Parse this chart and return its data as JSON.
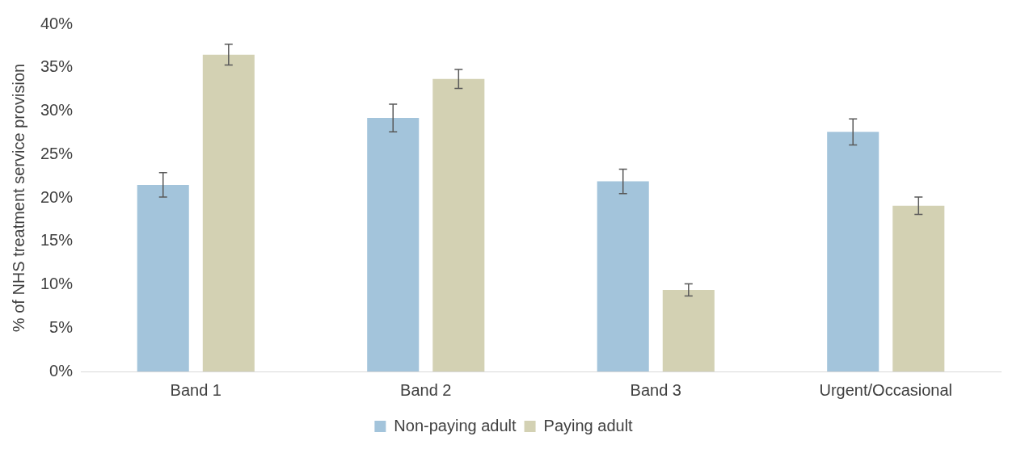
{
  "chart_data": {
    "type": "bar",
    "ylabel": "% of NHS treatment service provision",
    "categories": [
      "Band 1",
      "Band 2",
      "Band 3",
      "Urgent/Occasional"
    ],
    "series": [
      {
        "name": "Non-paying adult",
        "color": "#a3c4db",
        "values": [
          21.5,
          29.2,
          21.9,
          27.6
        ],
        "errors": [
          1.4,
          1.6,
          1.4,
          1.5
        ]
      },
      {
        "name": "Paying adult",
        "color": "#d3d1b3",
        "values": [
          36.5,
          33.7,
          9.4,
          19.1
        ],
        "errors": [
          1.2,
          1.1,
          0.7,
          1.0
        ]
      }
    ],
    "ylim": [
      0,
      40
    ],
    "yticks": [
      {
        "value": 0,
        "label": "0%"
      },
      {
        "value": 5,
        "label": "5%"
      },
      {
        "value": 10,
        "label": "10%"
      },
      {
        "value": 15,
        "label": "15%"
      },
      {
        "value": 20,
        "label": "20%"
      },
      {
        "value": 25,
        "label": "25%"
      },
      {
        "value": 30,
        "label": "30%"
      },
      {
        "value": 35,
        "label": "35%"
      },
      {
        "value": 40,
        "label": "40%"
      }
    ],
    "grid": false,
    "legend": "bottom"
  }
}
